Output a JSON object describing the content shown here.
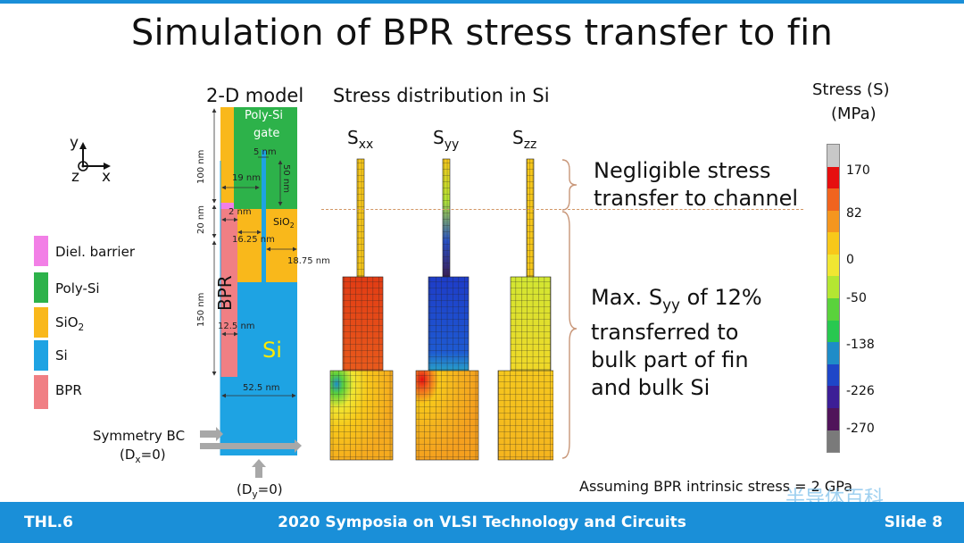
{
  "title": "Simulation of BPR stress transfer to fin",
  "model_header": "2-D model",
  "stress_header": "Stress distribution in Si",
  "axes": {
    "y": "y",
    "z": "z",
    "x": "x"
  },
  "legend": [
    {
      "label": "Diel. barrier",
      "color": "#f27fe6"
    },
    {
      "label": "Poly-Si",
      "color": "#2db24a"
    },
    {
      "label": "SiO",
      "sub": "2",
      "color": "#f9b81b"
    },
    {
      "label": "Si",
      "color": "#1ea3e3"
    },
    {
      "label": "BPR",
      "color": "#f07f84"
    }
  ],
  "model": {
    "gate_label_1": "Poly-Si",
    "gate_label_2": "gate",
    "sio2_label": "SiO",
    "sio2_sub": "2",
    "bpr_label": "BPR",
    "si_label": "Si",
    "dims": {
      "d100": "100 nm",
      "d20": "20 nm",
      "d150": "150 nm",
      "d5": "5 nm",
      "d50": "50 nm",
      "d19": "19 nm",
      "d2": "2 nm",
      "d1625": "16.25 nm",
      "d1875": "18.75 nm",
      "d125": "12.5 nm",
      "d525": "52.5 nm"
    }
  },
  "bc": {
    "symmetry": "Symmetry BC",
    "dx_pre": "(D",
    "dx_sub": "x",
    "dx_post": "=0)",
    "dy_pre": "(D",
    "dy_sub": "y",
    "dy_post": "=0)"
  },
  "stress_maps": [
    {
      "label": "S",
      "sub": "xx"
    },
    {
      "label": "S",
      "sub": "yy"
    },
    {
      "label": "S",
      "sub": "zz"
    }
  ],
  "notes": {
    "negligible_1": "Negligible stress",
    "negligible_2": "transfer to channel",
    "max_pre": "Max. S",
    "max_sub": "yy",
    "max_post": " of 12%",
    "max_2": "transferred to",
    "max_3": "bulk part of fin",
    "max_4": "and bulk Si"
  },
  "colorbar": {
    "title_1": "Stress (S)",
    "title_2": "(MPa)",
    "colors": [
      "#c8c8c8",
      "#e60f0f",
      "#f0641e",
      "#f5961e",
      "#f8c81a",
      "#f0e632",
      "#b4e632",
      "#5ad23c",
      "#28c850",
      "#1e8cc8",
      "#1e46c8",
      "#3c1e96",
      "#50145a",
      "#7a7a7a"
    ],
    "ticks": [
      "170",
      "82",
      "0",
      "-50",
      "-138",
      "-226",
      "-270"
    ]
  },
  "assumption": "Assuming BPR intrinsic stress = 2 GPa",
  "watermark": "半导体百科",
  "footer": {
    "left": "THL.6",
    "center": "2020 Symposia on VLSI Technology and Circuits",
    "right": "Slide 8"
  }
}
